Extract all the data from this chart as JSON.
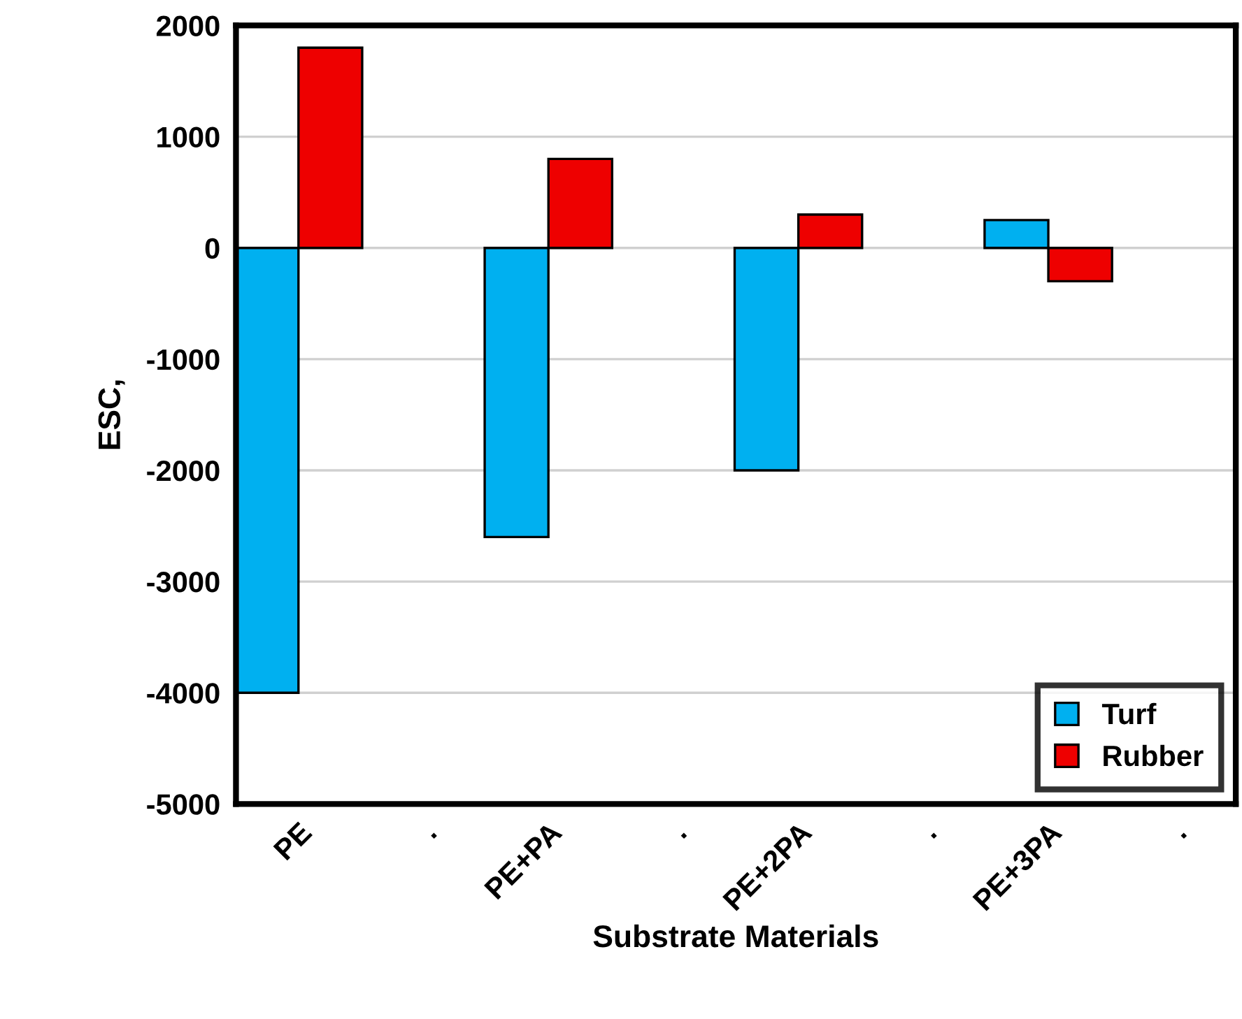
{
  "chart_data": {
    "type": "bar",
    "xlabel": "Substrate Materials",
    "ylabel": "ESC,",
    "categories": [
      "PE",
      ".",
      "PE+PA",
      ".",
      "PE+2PA",
      ".",
      "PE+3PA",
      "."
    ],
    "series": [
      {
        "name": "Turf",
        "color": "#00b0f0",
        "values": [
          -4000,
          null,
          -2600,
          null,
          -2000,
          null,
          250,
          null
        ]
      },
      {
        "name": "Rubber",
        "color": "#ee0000",
        "values": [
          1800,
          null,
          800,
          null,
          300,
          null,
          -300,
          null
        ]
      }
    ],
    "ylim": [
      -5000,
      2000
    ],
    "yticks": [
      -5000,
      -4000,
      -3000,
      -2000,
      -1000,
      0,
      1000,
      2000
    ],
    "grid": "y",
    "legend": "bottom right"
  }
}
